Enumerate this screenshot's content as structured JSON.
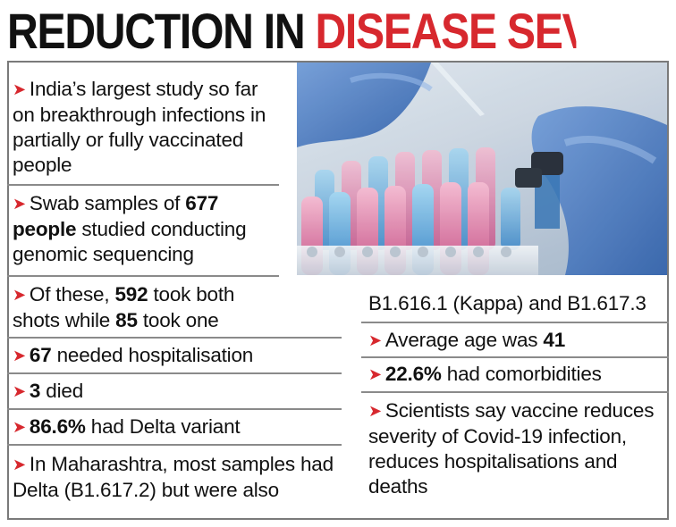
{
  "headline": {
    "part1": "REDUCTION IN",
    "part2": "DISEASE SEVERITY"
  },
  "photo": {
    "subject": "test tubes with pink and blue liquid, gloved hand with pipette"
  },
  "left_items": [
    {
      "pre": "India’s largest study so far on breakthrough infections in partially or fully vaccinated people"
    },
    {
      "pre": "Swab samples of ",
      "b1": "677 people",
      "mid": " studied conducting genomic sequencing"
    },
    {
      "pre": "Of these, ",
      "b1": "592",
      "mid": " took both shots while ",
      "b2": "85",
      "post": " took one"
    },
    {
      "b1": "67",
      "mid": " needed hospitalisation"
    },
    {
      "b1": "3",
      "mid": " died"
    },
    {
      "b1": "86.6%",
      "mid": " had Delta variant"
    },
    {
      "pre": "In Maharashtra, most samples had Delta (B1.617.2) but were also"
    }
  ],
  "right_items": [
    {
      "pre": "B1.616.1 (Kappa) and B1.617.3"
    },
    {
      "pre": "Average age was ",
      "b1": "41"
    },
    {
      "b1": "22.6%",
      "mid": " had comorbidities"
    },
    {
      "pre": "Scientists say vaccine reduces severity of Covid-19 infection, reduces hospitalisations and deaths"
    }
  ],
  "arrow_glyph": "➤",
  "colors": {
    "accent": "#d7282e",
    "text": "#111111",
    "rule": "#8a8a8a"
  }
}
